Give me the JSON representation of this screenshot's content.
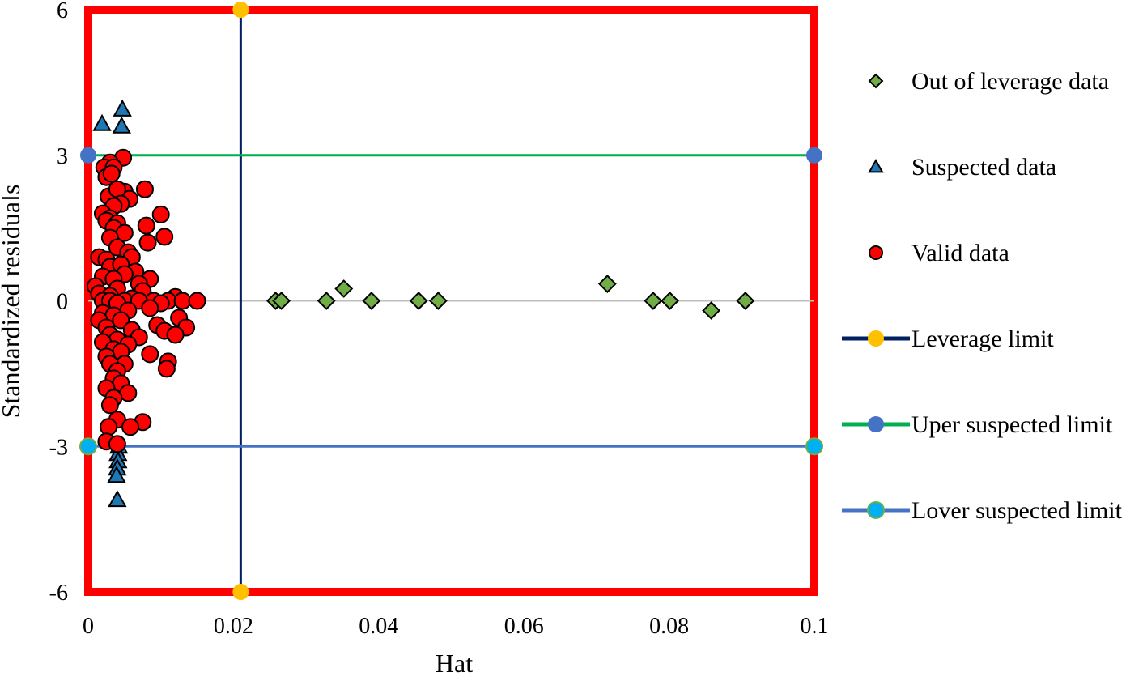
{
  "chart_data": {
    "type": "scatter",
    "xlabel": "Hat",
    "ylabel": "Standardized residuals",
    "xlim": [
      0,
      0.1
    ],
    "ylim": [
      -6,
      6
    ],
    "x_ticks": [
      0,
      0.02,
      0.04,
      0.06,
      0.08,
      0.1
    ],
    "x_tick_labels": [
      "0",
      "0.02",
      "0.04",
      "0.06",
      "0.08",
      "0.1"
    ],
    "y_ticks": [
      6,
      3,
      0,
      -3,
      -6
    ],
    "y_tick_labels": [
      "6",
      "3",
      "0",
      "-3",
      "-6"
    ],
    "grid": false,
    "zero_line": true,
    "legend_position": "right",
    "leverage_limit": 0.021,
    "upper_suspected_limit": 3,
    "lower_suspected_limit": -3,
    "series": [
      {
        "name": "Out of leverage data",
        "marker": "diamond",
        "color": "#70AD47",
        "points": [
          [
            0.0258,
            0
          ],
          [
            0.0266,
            0
          ],
          [
            0.0328,
            0
          ],
          [
            0.0352,
            0.25
          ],
          [
            0.039,
            0
          ],
          [
            0.0455,
            0
          ],
          [
            0.0482,
            0
          ],
          [
            0.0715,
            0.35
          ],
          [
            0.0778,
            0
          ],
          [
            0.0801,
            0
          ],
          [
            0.0858,
            -0.2
          ],
          [
            0.0905,
            0
          ]
        ]
      },
      {
        "name": "Suspected data",
        "marker": "triangle",
        "color": "#1F77B4",
        "points": [
          [
            0.0019,
            3.65
          ],
          [
            0.0047,
            3.95
          ],
          [
            0.0046,
            3.6
          ],
          [
            0.0042,
            -3.0
          ],
          [
            0.0041,
            -3.15
          ],
          [
            0.0041,
            -3.3
          ],
          [
            0.004,
            -3.45
          ],
          [
            0.0039,
            -3.6
          ],
          [
            0.004,
            -4.1
          ]
        ]
      },
      {
        "name": "Valid data",
        "marker": "circle",
        "color": "#FF0000",
        "points": [
          [
            0.0048,
            2.95
          ],
          [
            0.003,
            2.85
          ],
          [
            0.0022,
            2.75
          ],
          [
            0.0035,
            2.75
          ],
          [
            0.0025,
            2.55
          ],
          [
            0.0032,
            2.62
          ],
          [
            0.0078,
            2.3
          ],
          [
            0.005,
            2.25
          ],
          [
            0.0057,
            2.1
          ],
          [
            0.0028,
            2.15
          ],
          [
            0.004,
            2.3
          ],
          [
            0.0045,
            2.0
          ],
          [
            0.0035,
            1.95
          ],
          [
            0.01,
            1.78
          ],
          [
            0.002,
            1.8
          ],
          [
            0.003,
            1.7
          ],
          [
            0.0025,
            1.65
          ],
          [
            0.008,
            1.55
          ],
          [
            0.004,
            1.6
          ],
          [
            0.0035,
            1.5
          ],
          [
            0.005,
            1.4
          ],
          [
            0.0105,
            1.32
          ],
          [
            0.0082,
            1.2
          ],
          [
            0.003,
            1.3
          ],
          [
            0.004,
            1.1
          ],
          [
            0.0055,
            1.0
          ],
          [
            0.006,
            0.9
          ],
          [
            0.0015,
            0.9
          ],
          [
            0.0025,
            0.85
          ],
          [
            0.003,
            0.7
          ],
          [
            0.0045,
            0.75
          ],
          [
            0.0065,
            0.6
          ],
          [
            0.005,
            0.55
          ],
          [
            0.002,
            0.5
          ],
          [
            0.0035,
            0.45
          ],
          [
            0.0085,
            0.45
          ],
          [
            0.007,
            0.35
          ],
          [
            0.001,
            0.3
          ],
          [
            0.004,
            0.25
          ],
          [
            0.0075,
            0.2
          ],
          [
            0.0015,
            0.15
          ],
          [
            0.003,
            0.1
          ],
          [
            0.012,
            0.08
          ],
          [
            0.006,
            0.05
          ],
          [
            0.009,
            0
          ],
          [
            0.011,
            0
          ],
          [
            0.013,
            0
          ],
          [
            0.015,
            0
          ],
          [
            0.002,
            0
          ],
          [
            0.003,
            0
          ],
          [
            0.005,
            0
          ],
          [
            0.007,
            0
          ],
          [
            0.004,
            -0.05
          ],
          [
            0.01,
            -0.05
          ],
          [
            0.0085,
            -0.15
          ],
          [
            0.0055,
            -0.2
          ],
          [
            0.002,
            -0.25
          ],
          [
            0.0035,
            -0.3
          ],
          [
            0.0125,
            -0.35
          ],
          [
            0.0015,
            -0.4
          ],
          [
            0.0045,
            -0.4
          ],
          [
            0.0095,
            -0.5
          ],
          [
            0.0135,
            -0.55
          ],
          [
            0.0025,
            -0.55
          ],
          [
            0.006,
            -0.6
          ],
          [
            0.0105,
            -0.62
          ],
          [
            0.003,
            -0.7
          ],
          [
            0.012,
            -0.7
          ],
          [
            0.007,
            -0.75
          ],
          [
            0.004,
            -0.8
          ],
          [
            0.002,
            -0.85
          ],
          [
            0.0055,
            -0.9
          ],
          [
            0.0035,
            -1.0
          ],
          [
            0.0045,
            -1.05
          ],
          [
            0.0085,
            -1.1
          ],
          [
            0.0025,
            -1.15
          ],
          [
            0.011,
            -1.25
          ],
          [
            0.005,
            -1.3
          ],
          [
            0.003,
            -1.3
          ],
          [
            0.0108,
            -1.4
          ],
          [
            0.004,
            -1.45
          ],
          [
            0.0035,
            -1.6
          ],
          [
            0.0045,
            -1.7
          ],
          [
            0.0025,
            -1.8
          ],
          [
            0.0055,
            -1.9
          ],
          [
            0.0035,
            -2.0
          ],
          [
            0.003,
            -2.15
          ],
          [
            0.0075,
            -2.5
          ],
          [
            0.004,
            -2.45
          ],
          [
            0.0058,
            -2.6
          ],
          [
            0.0028,
            -2.6
          ],
          [
            0.0025,
            -2.9
          ],
          [
            0.004,
            -2.95
          ]
        ]
      },
      {
        "name": "Leverage limit",
        "marker": "circle",
        "color": "#FFC000",
        "line_color": "#002060",
        "points": [
          [
            0.021,
            6
          ],
          [
            0.021,
            -6
          ]
        ]
      },
      {
        "name": "Uper suspected limit",
        "marker": "circle",
        "color": "#4472C4",
        "line_color": "#00B050",
        "points": [
          [
            0,
            3
          ],
          [
            0.1,
            3
          ]
        ]
      },
      {
        "name": "Lover suspected limit",
        "marker": "circle",
        "color": "#00B0F0",
        "line_color": "#4472C4",
        "points": [
          [
            0,
            -3
          ],
          [
            0.1,
            -3
          ]
        ]
      }
    ]
  }
}
